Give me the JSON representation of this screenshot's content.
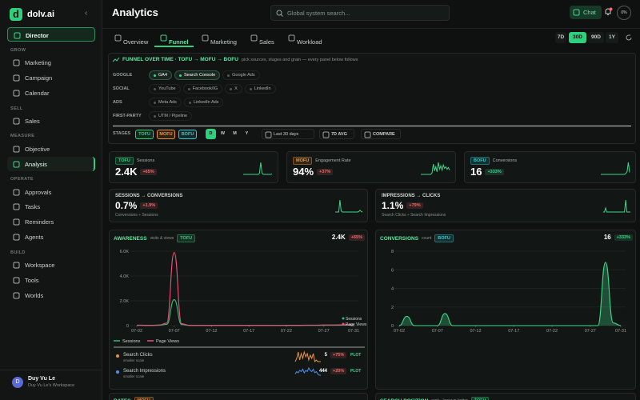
{
  "sidebar": {
    "logo": "d",
    "brand": "dolv.ai",
    "items": [
      {
        "label": "Director",
        "highlight": true
      },
      {
        "section": "GROW"
      },
      {
        "label": "Marketing"
      },
      {
        "label": "Campaign"
      },
      {
        "label": "Calendar"
      },
      {
        "section": "SELL"
      },
      {
        "label": "Sales"
      },
      {
        "section": "MEASURE"
      },
      {
        "label": "Objective"
      },
      {
        "label": "Analysis",
        "active": true
      },
      {
        "section": "OPERATE"
      },
      {
        "label": "Approvals"
      },
      {
        "label": "Tasks"
      },
      {
        "label": "Reminders"
      },
      {
        "label": "Agents"
      },
      {
        "section": "BUILD"
      },
      {
        "label": "Workspace"
      },
      {
        "label": "Tools"
      },
      {
        "label": "Worlds"
      }
    ],
    "user": {
      "avatar": "D",
      "name": "Duy Vu Le",
      "workspace": "Duy Vu Le's Workspace"
    }
  },
  "header": {
    "title": "Analytics",
    "search": "Global system search...",
    "chat": "Chat",
    "avatar": "0%"
  },
  "tabs": [
    {
      "label": "Overview"
    },
    {
      "label": "Funnel",
      "active": true
    },
    {
      "label": "Marketing"
    },
    {
      "label": "Sales"
    },
    {
      "label": "Workload"
    }
  ],
  "ranges": [
    {
      "label": "7D"
    },
    {
      "label": "30D",
      "active": true
    },
    {
      "label": "90D"
    },
    {
      "label": "1Y"
    }
  ],
  "funnel": {
    "title": "FUNNEL OVER TIME · TOFU → MOFU → BOFU",
    "subtitle": "pick sources, stages and grain — every panel below follows",
    "sources": [
      {
        "label": "GOOGLE",
        "chips": [
          {
            "label": "GA4",
            "on": true
          },
          {
            "label": "Search Console",
            "on": true
          },
          {
            "label": "Google Ads"
          }
        ]
      },
      {
        "label": "SOCIAL",
        "chips": [
          {
            "label": "YouTube"
          },
          {
            "label": "Facebook/IG"
          },
          {
            "label": "X"
          },
          {
            "label": "LinkedIn"
          }
        ]
      },
      {
        "label": "ADS",
        "chips": [
          {
            "label": "Meta Ads"
          },
          {
            "label": "LinkedIn Ads"
          }
        ]
      },
      {
        "label": "FIRST-PARTY",
        "chips": [
          {
            "label": "UTM / Pipeline"
          }
        ]
      }
    ],
    "stages_label": "STAGES",
    "stages": [
      {
        "label": "TOFU",
        "color": "#2fd07d"
      },
      {
        "label": "MOFU",
        "color": "#f0913a"
      },
      {
        "label": "BOFU",
        "color": "#35c9d0"
      }
    ],
    "grains": [
      {
        "label": "D",
        "active": true
      },
      {
        "label": "W"
      },
      {
        "label": "M"
      },
      {
        "label": "Y"
      }
    ],
    "period": "Last 30 days",
    "average": "7D AVG",
    "compare": "COMPARE"
  },
  "kpis": [
    {
      "tag": "TOFU",
      "tag_color": "#2fd07d",
      "label": "Sessions",
      "value": "2.4K",
      "delta": "+65%",
      "delta_color": "#f06a6a",
      "spark": [
        0,
        0,
        0,
        0,
        0,
        0,
        0,
        0,
        0,
        0,
        0,
        0,
        0,
        2,
        24,
        3,
        0,
        0,
        0,
        0,
        0,
        0,
        0,
        1
      ]
    },
    {
      "tag": "MOFU",
      "tag_color": "#f0913a",
      "label": "Engagement Rate",
      "value": "94%",
      "delta": "+37%",
      "delta_color": "#f06a6a",
      "spark": [
        0,
        0,
        0,
        0,
        0,
        0,
        0,
        0,
        0,
        2,
        12,
        4,
        9,
        3,
        14,
        6,
        10,
        5,
        11,
        7,
        9,
        6,
        8,
        5
      ]
    },
    {
      "tag": "BOFU",
      "tag_color": "#35c9d0",
      "label": "Conversions",
      "value": "16",
      "delta": "+333%",
      "delta_color": "#3fd68a",
      "spark": [
        0,
        0,
        0,
        0,
        0,
        0,
        0,
        0,
        0,
        0,
        0,
        0,
        0,
        0,
        0,
        0,
        0,
        0,
        0,
        0,
        1,
        3,
        12,
        2
      ]
    }
  ],
  "ratios": [
    {
      "title": "SESSIONS → CONVERSIONS",
      "value": "0.7%",
      "delta": "+1.9%",
      "delta_color": "#f06a6a",
      "note": "Conversions ÷ Sessions",
      "spark": [
        0,
        0,
        0,
        0,
        20,
        2,
        0,
        0,
        0,
        0,
        0,
        0,
        0,
        0,
        0,
        0,
        0,
        0,
        0,
        0,
        1,
        3,
        1,
        0
      ]
    },
    {
      "title": "IMPRESSIONS → CLICKS",
      "value": "1.1%",
      "delta": "+79%",
      "delta_color": "#f06a6a",
      "note": "Search Clicks ÷ Search Impressions",
      "spark": [
        0,
        0,
        4,
        0,
        0,
        0,
        0,
        0,
        0,
        0,
        0,
        0,
        0,
        0,
        0,
        0,
        0,
        0,
        0,
        12,
        0,
        0,
        0,
        0
      ]
    }
  ],
  "chart_data": [
    {
      "type": "line",
      "title": "AWARENESS",
      "subtitle": "visits & views",
      "tag": "TOFU",
      "tag_color": "#2fd07d",
      "value": "2.4K",
      "delta": "+65%",
      "delta_color": "#f06a6a",
      "x": [
        "07-02",
        "07-03",
        "07-04",
        "07-05",
        "07-06",
        "07-07",
        "07-08",
        "07-09",
        "07-10",
        "07-11",
        "07-12",
        "07-13",
        "07-14",
        "07-15",
        "07-16",
        "07-17",
        "07-18",
        "07-19",
        "07-20",
        "07-21",
        "07-22",
        "07-23",
        "07-24",
        "07-25",
        "07-26",
        "07-27",
        "07-28",
        "07-29",
        "07-30",
        "07-31"
      ],
      "xticks": [
        "07-02",
        "07-07",
        "07-12",
        "07-17",
        "07-22",
        "07-27",
        "07-31"
      ],
      "ylim": [
        0,
        6000
      ],
      "yticks": [
        0,
        {
          "value": 2000,
          "label": "2.0K"
        },
        {
          "value": 4000,
          "label": "4.0K"
        },
        {
          "value": 6000,
          "label": "6.0K"
        }
      ],
      "grid": true,
      "series": [
        {
          "name": "Sessions",
          "color": "#2fbf71",
          "values": [
            20,
            15,
            15,
            30,
            100,
            2100,
            80,
            15,
            10,
            10,
            10,
            10,
            10,
            10,
            10,
            10,
            10,
            10,
            10,
            10,
            15,
            15,
            15,
            20,
            20,
            25,
            25,
            30,
            35,
            40
          ]
        },
        {
          "name": "Page Views",
          "color": "#f0507a",
          "values": [
            40,
            30,
            30,
            50,
            200,
            5900,
            150,
            30,
            20,
            20,
            20,
            20,
            20,
            20,
            20,
            20,
            20,
            20,
            20,
            20,
            30,
            30,
            30,
            40,
            40,
            50,
            50,
            60,
            70,
            80
          ]
        }
      ]
    },
    {
      "type": "area",
      "title": "CONVERSIONS",
      "subtitle": "count",
      "tag": "BOFU",
      "tag_color": "#35c9d0",
      "value": "16",
      "delta": "+333%",
      "delta_color": "#3fd68a",
      "x": [
        "07-02",
        "07-03",
        "07-04",
        "07-05",
        "07-06",
        "07-07",
        "07-08",
        "07-09",
        "07-10",
        "07-11",
        "07-12",
        "07-13",
        "07-14",
        "07-15",
        "07-16",
        "07-17",
        "07-18",
        "07-19",
        "07-20",
        "07-21",
        "07-22",
        "07-23",
        "07-24",
        "07-25",
        "07-26",
        "07-27",
        "07-28",
        "07-29",
        "07-30",
        "07-31"
      ],
      "xticks": [
        "07-02",
        "07-07",
        "07-12",
        "07-17",
        "07-22",
        "07-27",
        "07-31"
      ],
      "ylim": [
        0,
        8
      ],
      "yticks": [
        0,
        2,
        4,
        6,
        8
      ],
      "grid": true,
      "series": [
        {
          "color": "#3fd68a",
          "values": [
            0,
            1,
            0,
            0,
            0,
            0,
            1.3,
            0,
            0,
            0,
            0,
            0,
            0,
            0,
            0,
            0,
            0,
            0,
            0,
            0,
            0,
            0,
            0,
            0,
            0,
            0,
            0,
            6.8,
            0.3,
            0
          ]
        }
      ]
    }
  ],
  "submetrics": [
    {
      "color": "#f0913a",
      "label": "Search Clicks",
      "note": "smaller scale",
      "value": "5",
      "delta": "+75%",
      "delta_color": "#f06a6a",
      "action": "PLOT",
      "spark": [
        0,
        2,
        6,
        1,
        5,
        2,
        6,
        3,
        5,
        1,
        4,
        2,
        5,
        0,
        1,
        0,
        0,
        0
      ]
    },
    {
      "color": "#4d8ff0",
      "label": "Search Impressions",
      "note": "smaller scale",
      "value": "444",
      "delta": "+20%",
      "delta_color": "#f06a6a",
      "action": "PLOT",
      "spark": [
        3,
        5,
        4,
        6,
        5,
        7,
        4,
        6,
        5,
        8,
        6,
        5,
        7,
        4,
        5,
        3,
        2,
        2
      ]
    }
  ],
  "more": [
    {
      "title": "RATES",
      "tag": "MOFU",
      "tag_color": "#f0913a"
    },
    {
      "title": "SEARCH POSITION",
      "subtitle": "rank · lower is better",
      "tag": "TOFU",
      "tag_color": "#2fd07d"
    }
  ]
}
